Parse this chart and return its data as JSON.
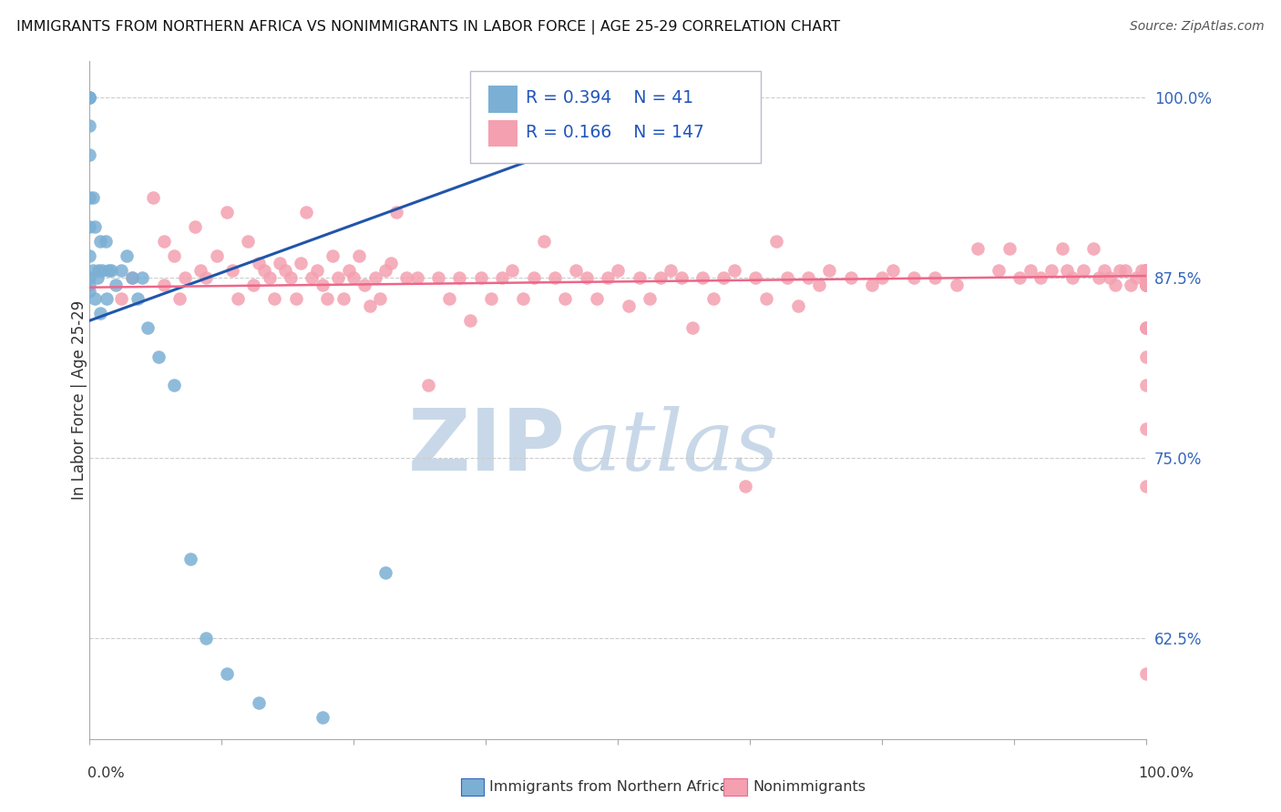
{
  "title": "IMMIGRANTS FROM NORTHERN AFRICA VS NONIMMIGRANTS IN LABOR FORCE | AGE 25-29 CORRELATION CHART",
  "source": "Source: ZipAtlas.com",
  "ylabel": "In Labor Force | Age 25-29",
  "xlim": [
    0.0,
    1.0
  ],
  "ylim": [
    0.555,
    1.025
  ],
  "yticks": [
    0.625,
    0.75,
    0.875,
    1.0
  ],
  "ytick_labels": [
    "62.5%",
    "75.0%",
    "87.5%",
    "100.0%"
  ],
  "legend_R_blue": "0.394",
  "legend_N_blue": "41",
  "legend_R_pink": "0.166",
  "legend_N_pink": "147",
  "blue_color": "#7BAFD4",
  "pink_color": "#F4A0B0",
  "trendline_blue": "#2255AA",
  "trendline_pink": "#EE6688",
  "blue_trend": [
    0.0,
    0.62,
    0.845,
    1.01
  ],
  "pink_trend": [
    0.0,
    1.0,
    0.868,
    0.876
  ],
  "watermark_zip": "ZIP",
  "watermark_atlas": "atlas",
  "watermark_color": "#C8D8E8",
  "background_color": "#FFFFFF",
  "grid_color": "#CCCCCC",
  "blue_x": [
    0.0,
    0.0,
    0.0,
    0.0,
    0.0,
    0.0,
    0.0,
    0.0,
    0.0,
    0.0,
    0.0,
    0.003,
    0.003,
    0.005,
    0.005,
    0.007,
    0.008,
    0.01,
    0.01,
    0.012,
    0.015,
    0.016,
    0.018,
    0.02,
    0.025,
    0.03,
    0.035,
    0.04,
    0.045,
    0.05,
    0.055,
    0.065,
    0.08,
    0.095,
    0.11,
    0.13,
    0.16,
    0.22,
    0.28,
    0.55,
    0.62
  ],
  "blue_y": [
    1.0,
    1.0,
    1.0,
    0.98,
    0.96,
    0.93,
    0.91,
    0.89,
    0.875,
    0.87,
    0.865,
    0.93,
    0.88,
    0.91,
    0.86,
    0.875,
    0.88,
    0.9,
    0.85,
    0.88,
    0.9,
    0.86,
    0.88,
    0.88,
    0.87,
    0.88,
    0.89,
    0.875,
    0.86,
    0.875,
    0.84,
    0.82,
    0.8,
    0.68,
    0.625,
    0.6,
    0.58,
    0.57,
    0.67,
    1.0,
    1.0
  ],
  "pink_x": [
    0.03,
    0.04,
    0.06,
    0.07,
    0.07,
    0.08,
    0.085,
    0.09,
    0.1,
    0.105,
    0.11,
    0.12,
    0.13,
    0.135,
    0.14,
    0.15,
    0.155,
    0.16,
    0.165,
    0.17,
    0.175,
    0.18,
    0.185,
    0.19,
    0.195,
    0.2,
    0.205,
    0.21,
    0.215,
    0.22,
    0.225,
    0.23,
    0.235,
    0.24,
    0.245,
    0.25,
    0.255,
    0.26,
    0.265,
    0.27,
    0.275,
    0.28,
    0.285,
    0.29,
    0.3,
    0.31,
    0.32,
    0.33,
    0.34,
    0.35,
    0.36,
    0.37,
    0.38,
    0.39,
    0.4,
    0.41,
    0.42,
    0.43,
    0.44,
    0.45,
    0.46,
    0.47,
    0.48,
    0.49,
    0.5,
    0.51,
    0.52,
    0.53,
    0.54,
    0.55,
    0.56,
    0.57,
    0.58,
    0.59,
    0.6,
    0.61,
    0.62,
    0.63,
    0.64,
    0.65,
    0.66,
    0.67,
    0.68,
    0.69,
    0.7,
    0.72,
    0.74,
    0.75,
    0.76,
    0.78,
    0.8,
    0.82,
    0.84,
    0.86,
    0.87,
    0.88,
    0.89,
    0.9,
    0.91,
    0.92,
    0.925,
    0.93,
    0.94,
    0.95,
    0.955,
    0.96,
    0.965,
    0.97,
    0.975,
    0.98,
    0.985,
    0.99,
    0.995,
    1.0,
    1.0,
    1.0,
    1.0,
    1.0,
    1.0,
    1.0,
    1.0,
    1.0,
    1.0,
    1.0,
    1.0,
    1.0,
    1.0,
    1.0,
    1.0,
    1.0,
    1.0,
    1.0,
    1.0,
    1.0,
    1.0,
    1.0,
    1.0,
    1.0,
    1.0,
    1.0,
    1.0,
    1.0,
    1.0,
    1.0
  ],
  "pink_y": [
    0.86,
    0.875,
    0.93,
    0.9,
    0.87,
    0.89,
    0.86,
    0.875,
    0.91,
    0.88,
    0.875,
    0.89,
    0.92,
    0.88,
    0.86,
    0.9,
    0.87,
    0.885,
    0.88,
    0.875,
    0.86,
    0.885,
    0.88,
    0.875,
    0.86,
    0.885,
    0.92,
    0.875,
    0.88,
    0.87,
    0.86,
    0.89,
    0.875,
    0.86,
    0.88,
    0.875,
    0.89,
    0.87,
    0.855,
    0.875,
    0.86,
    0.88,
    0.885,
    0.92,
    0.875,
    0.875,
    0.8,
    0.875,
    0.86,
    0.875,
    0.845,
    0.875,
    0.86,
    0.875,
    0.88,
    0.86,
    0.875,
    0.9,
    0.875,
    0.86,
    0.88,
    0.875,
    0.86,
    0.875,
    0.88,
    0.855,
    0.875,
    0.86,
    0.875,
    0.88,
    0.875,
    0.84,
    0.875,
    0.86,
    0.875,
    0.88,
    0.73,
    0.875,
    0.86,
    0.9,
    0.875,
    0.855,
    0.875,
    0.87,
    0.88,
    0.875,
    0.87,
    0.875,
    0.88,
    0.875,
    0.875,
    0.87,
    0.895,
    0.88,
    0.895,
    0.875,
    0.88,
    0.875,
    0.88,
    0.895,
    0.88,
    0.875,
    0.88,
    0.895,
    0.875,
    0.88,
    0.875,
    0.87,
    0.88,
    0.88,
    0.87,
    0.875,
    0.88,
    0.88,
    0.87,
    0.875,
    0.875,
    0.87,
    0.88,
    0.88,
    0.875,
    0.87,
    0.88,
    0.87,
    0.875,
    0.88,
    0.875,
    0.87,
    0.875,
    0.84,
    0.88,
    0.875,
    0.87,
    0.875,
    0.84,
    0.84,
    0.82,
    0.8,
    0.77,
    0.73,
    0.6,
    0.875,
    0.87,
    0.88
  ]
}
